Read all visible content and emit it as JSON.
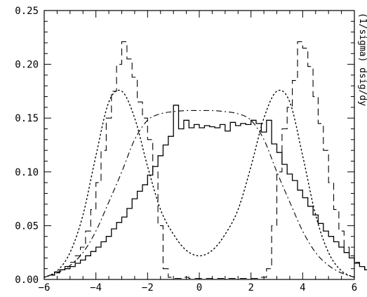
{
  "chart_data": {
    "type": "line",
    "title": "",
    "xlabel": "",
    "ylabel": "(1/sigma) dsig/dy",
    "xlim": [
      -6,
      6
    ],
    "ylim": [
      0,
      0.25
    ],
    "x_ticks": [
      -6,
      -4,
      -2,
      0,
      2,
      4,
      6
    ],
    "x_tick_labels": [
      "−6",
      "−4",
      "−2",
      "0",
      "2",
      "4",
      "6"
    ],
    "y_ticks": [
      0,
      0.05,
      0.1,
      0.15,
      0.2,
      0.25
    ],
    "y_tick_labels": [
      "0.00",
      "0.05",
      "0.10",
      "0.15",
      "0.20",
      "0.25"
    ],
    "grid": false,
    "legend": "none",
    "series": [
      {
        "style": "solid-step",
        "bin_width": 0.2,
        "x_start": -5.8,
        "values": [
          0.004,
          0.007,
          0.009,
          0.01,
          0.012,
          0.015,
          0.018,
          0.022,
          0.026,
          0.03,
          0.035,
          0.04,
          0.047,
          0.053,
          0.058,
          0.066,
          0.075,
          0.082,
          0.088,
          0.097,
          0.105,
          0.115,
          0.125,
          0.133,
          0.162,
          0.14,
          0.148,
          0.141,
          0.144,
          0.141,
          0.143,
          0.142,
          0.141,
          0.144,
          0.138,
          0.146,
          0.143,
          0.145,
          0.144,
          0.148,
          0.145,
          0.137,
          0.148,
          0.126,
          0.118,
          0.107,
          0.098,
          0.092,
          0.083,
          0.076,
          0.068,
          0.06,
          0.052,
          0.045,
          0.04,
          0.035,
          0.03,
          0.025,
          0.02,
          0.015,
          0.012,
          0.009,
          0.006,
          0.004,
          0.003
        ]
      },
      {
        "style": "long-dash-step",
        "bin_width": 0.2,
        "x_start": -5.8,
        "values": [
          0.004,
          0.006,
          0.009,
          0.012,
          0.016,
          0.022,
          0.03,
          0.045,
          0.065,
          0.09,
          0.12,
          0.15,
          0.175,
          0.2,
          0.221,
          0.205,
          0.188,
          0.165,
          0.15,
          0.13,
          0.1,
          0.05,
          0.01,
          0.002,
          0.001,
          0.001,
          0.002,
          0.001,
          0.001,
          0.001,
          0.001,
          0.001,
          0.001,
          0.001,
          0.001,
          0.001,
          0.001,
          0.001,
          0.001,
          0.001,
          0.001,
          0.002,
          0.01,
          0.05,
          0.1,
          0.14,
          0.16,
          0.185,
          0.221,
          0.215,
          0.198,
          0.17,
          0.145,
          0.12,
          0.09,
          0.065,
          0.045,
          0.03,
          0.022,
          0.016,
          0.012,
          0.009,
          0.007,
          0.005,
          0.004
        ]
      },
      {
        "style": "dotted",
        "x": [
          -6.0,
          -5.5,
          -5.0,
          -4.5,
          -4.0,
          -3.5,
          -3.0,
          -2.5,
          -2.0,
          -1.5,
          -1.0,
          -0.5,
          0.0,
          0.5,
          1.0,
          1.5,
          2.0,
          2.5,
          3.0,
          3.5,
          4.0,
          4.5,
          5.0,
          5.5,
          6.0
        ],
        "y": [
          0.002,
          0.008,
          0.025,
          0.06,
          0.115,
          0.165,
          0.175,
          0.15,
          0.105,
          0.065,
          0.042,
          0.027,
          0.022,
          0.027,
          0.042,
          0.065,
          0.105,
          0.15,
          0.175,
          0.165,
          0.115,
          0.06,
          0.025,
          0.008,
          0.002
        ]
      },
      {
        "style": "dash-dot",
        "x": [
          -6.0,
          -5.5,
          -5.0,
          -4.5,
          -4.0,
          -3.5,
          -3.0,
          -2.5,
          -2.0,
          -1.5,
          -1.0,
          -0.5,
          0.0,
          0.5,
          1.0,
          1.5,
          2.0,
          2.5,
          3.0,
          3.5,
          4.0,
          4.5,
          5.0,
          5.5,
          6.0
        ],
        "y": [
          0.002,
          0.006,
          0.013,
          0.025,
          0.045,
          0.072,
          0.1,
          0.13,
          0.148,
          0.154,
          0.156,
          0.157,
          0.157,
          0.157,
          0.156,
          0.154,
          0.148,
          0.13,
          0.1,
          0.072,
          0.045,
          0.025,
          0.013,
          0.006,
          0.002
        ]
      }
    ]
  }
}
